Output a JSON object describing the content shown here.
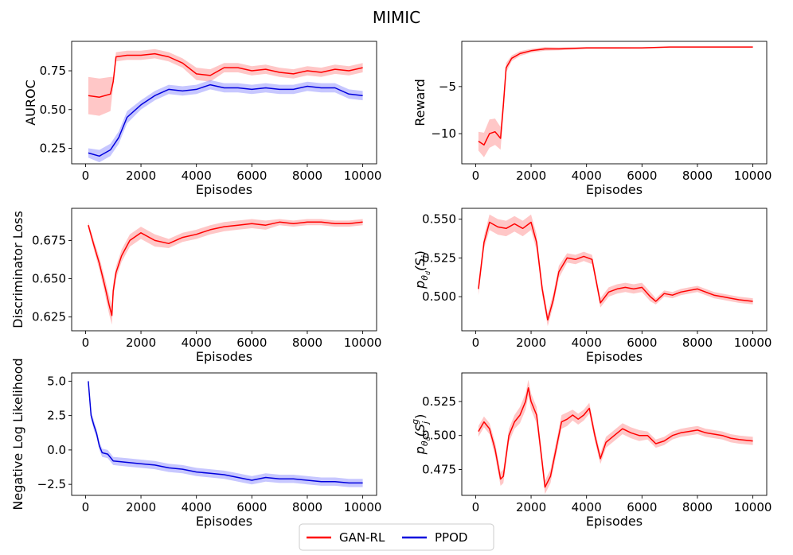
{
  "figure": {
    "suptitle": "MIMIC",
    "legend": {
      "placement": "bottom-center",
      "entries": [
        {
          "label": "GAN-RL",
          "color": "#ff0000"
        },
        {
          "label": "PPOD",
          "color": "#0000dd"
        }
      ]
    }
  },
  "chart_data": [
    {
      "id": "auroc",
      "type": "line",
      "xlabel": "Episodes",
      "ylabel": "AUROC",
      "xlim": [
        -500,
        10500
      ],
      "ylim": [
        0.15,
        0.94
      ],
      "xticks": [
        0,
        2000,
        4000,
        6000,
        8000,
        10000
      ],
      "yticks": [
        0.25,
        0.5,
        0.75
      ],
      "ytick_labels": [
        "0.25",
        "0.50",
        "0.75"
      ],
      "series": [
        {
          "name": "GAN-RL",
          "color": "#ff0000",
          "band_color": "#ff9999",
          "x": [
            100,
            500,
            900,
            1000,
            1100,
            1500,
            2000,
            2500,
            3000,
            3500,
            4000,
            4500,
            5000,
            5500,
            6000,
            6500,
            7000,
            7500,
            8000,
            8500,
            9000,
            9500,
            10000
          ],
          "y": [
            0.59,
            0.58,
            0.6,
            0.68,
            0.84,
            0.85,
            0.85,
            0.86,
            0.84,
            0.8,
            0.73,
            0.72,
            0.77,
            0.77,
            0.75,
            0.76,
            0.74,
            0.73,
            0.75,
            0.74,
            0.76,
            0.75,
            0.77
          ],
          "err": [
            0.12,
            0.12,
            0.11,
            0.03,
            0.03,
            0.03,
            0.03,
            0.03,
            0.03,
            0.03,
            0.04,
            0.04,
            0.03,
            0.03,
            0.03,
            0.03,
            0.03,
            0.03,
            0.03,
            0.03,
            0.03,
            0.03,
            0.03
          ]
        },
        {
          "name": "PPOD",
          "color": "#0000dd",
          "band_color": "#9999ff",
          "x": [
            100,
            500,
            900,
            1200,
            1500,
            2000,
            2500,
            3000,
            3500,
            4000,
            4500,
            5000,
            5500,
            6000,
            6500,
            7000,
            7500,
            8000,
            8500,
            9000,
            9500,
            10000
          ],
          "y": [
            0.22,
            0.2,
            0.24,
            0.32,
            0.45,
            0.53,
            0.59,
            0.63,
            0.62,
            0.63,
            0.66,
            0.64,
            0.64,
            0.63,
            0.64,
            0.63,
            0.63,
            0.65,
            0.64,
            0.64,
            0.6,
            0.59
          ],
          "err": [
            0.03,
            0.04,
            0.04,
            0.04,
            0.04,
            0.03,
            0.03,
            0.03,
            0.03,
            0.03,
            0.03,
            0.03,
            0.03,
            0.03,
            0.03,
            0.03,
            0.03,
            0.03,
            0.03,
            0.03,
            0.03,
            0.03
          ]
        }
      ]
    },
    {
      "id": "reward",
      "type": "line",
      "xlabel": "Episodes",
      "ylabel": "Reward",
      "xlim": [
        -500,
        10500
      ],
      "ylim": [
        -13.2,
        -0.2
      ],
      "xticks": [
        0,
        2000,
        4000,
        6000,
        8000,
        10000
      ],
      "yticks": [
        -10,
        -5
      ],
      "ytick_labels": [
        "−10",
        "−5"
      ],
      "series": [
        {
          "name": "GAN-RL",
          "color": "#ff0000",
          "band_color": "#ff9999",
          "x": [
            100,
            300,
            500,
            700,
            900,
            1000,
            1100,
            1300,
            1600,
            2000,
            2500,
            3000,
            4000,
            5000,
            6000,
            7000,
            8000,
            9000,
            10000
          ],
          "y": [
            -10.8,
            -11.2,
            -10.0,
            -9.8,
            -10.5,
            -7.0,
            -3.0,
            -2.0,
            -1.5,
            -1.2,
            -1.0,
            -1.0,
            -0.9,
            -0.9,
            -0.9,
            -0.8,
            -0.8,
            -0.8,
            -0.8
          ],
          "err": [
            1.0,
            1.3,
            1.5,
            1.4,
            1.2,
            1.0,
            0.5,
            0.3,
            0.25,
            0.2,
            0.2,
            0.15,
            0.1,
            0.1,
            0.08,
            0.05,
            0.05,
            0.05,
            0.05
          ]
        }
      ]
    },
    {
      "id": "disc-loss",
      "type": "line",
      "xlabel": "Episodes",
      "ylabel": "Discriminator Loss",
      "xlim": [
        -500,
        10500
      ],
      "ylim": [
        0.616,
        0.696
      ],
      "xticks": [
        0,
        2000,
        4000,
        6000,
        8000,
        10000
      ],
      "yticks": [
        0.625,
        0.65,
        0.675
      ],
      "ytick_labels": [
        "0.625",
        "0.650",
        "0.675"
      ],
      "series": [
        {
          "name": "GAN-RL",
          "color": "#ff0000",
          "band_color": "#ff9999",
          "x": [
            100,
            300,
            500,
            700,
            850,
            950,
            1000,
            1100,
            1300,
            1600,
            2000,
            2500,
            3000,
            3500,
            4000,
            4500,
            5000,
            5500,
            6000,
            6500,
            7000,
            7500,
            8000,
            8500,
            9000,
            9500,
            10000
          ],
          "y": [
            0.685,
            0.672,
            0.66,
            0.645,
            0.633,
            0.626,
            0.642,
            0.654,
            0.665,
            0.675,
            0.68,
            0.675,
            0.673,
            0.677,
            0.679,
            0.682,
            0.684,
            0.685,
            0.686,
            0.685,
            0.687,
            0.686,
            0.687,
            0.687,
            0.686,
            0.686,
            0.687
          ],
          "err": [
            0.002,
            0.003,
            0.004,
            0.005,
            0.006,
            0.006,
            0.005,
            0.004,
            0.004,
            0.004,
            0.004,
            0.004,
            0.003,
            0.003,
            0.003,
            0.003,
            0.003,
            0.003,
            0.003,
            0.003,
            0.002,
            0.002,
            0.002,
            0.002,
            0.002,
            0.002,
            0.002
          ]
        }
      ]
    },
    {
      "id": "p-si",
      "type": "line",
      "xlabel": "Episodes",
      "ylabel_main": "p",
      "ylabel_sub": "θ",
      "ylabel_subsub": "d",
      "ylabel_rest": "(S",
      "ylabel_i": "i",
      "ylabel_close": ")",
      "xlim": [
        -500,
        10500
      ],
      "ylim": [
        0.478,
        0.557
      ],
      "xticks": [
        0,
        2000,
        4000,
        6000,
        8000,
        10000
      ],
      "yticks": [
        0.5,
        0.525,
        0.55
      ],
      "ytick_labels": [
        "0.500",
        "0.525",
        "0.550"
      ],
      "series": [
        {
          "name": "GAN-RL",
          "color": "#ff0000",
          "band_color": "#ff9999",
          "x": [
            100,
            300,
            500,
            800,
            1100,
            1400,
            1700,
            2000,
            2200,
            2400,
            2600,
            2800,
            3000,
            3300,
            3600,
            3900,
            4200,
            4500,
            4800,
            5100,
            5400,
            5700,
            6000,
            6300,
            6500,
            6800,
            7100,
            7400,
            7700,
            8000,
            8300,
            8600,
            8900,
            9200,
            9500,
            10000
          ],
          "y": [
            0.505,
            0.535,
            0.548,
            0.545,
            0.544,
            0.547,
            0.544,
            0.548,
            0.535,
            0.505,
            0.485,
            0.498,
            0.516,
            0.525,
            0.524,
            0.526,
            0.524,
            0.496,
            0.503,
            0.505,
            0.506,
            0.505,
            0.506,
            0.5,
            0.497,
            0.502,
            0.501,
            0.503,
            0.504,
            0.505,
            0.503,
            0.501,
            0.5,
            0.499,
            0.498,
            0.497
          ],
          "err": [
            0.004,
            0.004,
            0.005,
            0.005,
            0.005,
            0.005,
            0.005,
            0.005,
            0.005,
            0.004,
            0.004,
            0.004,
            0.004,
            0.003,
            0.003,
            0.003,
            0.003,
            0.003,
            0.003,
            0.003,
            0.003,
            0.003,
            0.003,
            0.003,
            0.002,
            0.002,
            0.002,
            0.002,
            0.002,
            0.002,
            0.002,
            0.002,
            0.002,
            0.002,
            0.002,
            0.002
          ]
        }
      ]
    },
    {
      "id": "nll",
      "type": "line",
      "xlabel": "Episodes",
      "ylabel": "Negative Log Likelihood",
      "xlim": [
        -500,
        10500
      ],
      "ylim": [
        -3.3,
        5.6
      ],
      "xticks": [
        0,
        2000,
        4000,
        6000,
        8000,
        10000
      ],
      "yticks": [
        -2.5,
        0,
        2.5,
        5
      ],
      "ytick_labels": [
        "−2.5",
        "0.0",
        "2.5",
        "5.0"
      ],
      "series": [
        {
          "name": "PPOD",
          "color": "#0000dd",
          "band_color": "#9999ff",
          "x": [
            100,
            200,
            300,
            400,
            500,
            600,
            800,
            1000,
            1500,
            2000,
            2500,
            3000,
            3500,
            4000,
            4500,
            5000,
            5500,
            6000,
            6500,
            7000,
            7500,
            8000,
            8500,
            9000,
            9500,
            10000
          ],
          "y": [
            5.0,
            2.5,
            1.8,
            1.2,
            0.3,
            -0.2,
            -0.3,
            -0.8,
            -0.9,
            -1.0,
            -1.1,
            -1.3,
            -1.4,
            -1.6,
            -1.7,
            -1.8,
            -2.0,
            -2.2,
            -2.0,
            -2.1,
            -2.1,
            -2.2,
            -2.3,
            -2.3,
            -2.4,
            -2.4
          ],
          "err": [
            0.2,
            0.3,
            0.35,
            0.3,
            0.3,
            0.3,
            0.3,
            0.3,
            0.3,
            0.3,
            0.3,
            0.3,
            0.3,
            0.3,
            0.3,
            0.3,
            0.3,
            0.3,
            0.3,
            0.3,
            0.3,
            0.3,
            0.3,
            0.3,
            0.3,
            0.3
          ]
        }
      ]
    },
    {
      "id": "p-sjg",
      "type": "line",
      "xlabel": "Episodes",
      "ylabel_main": "p",
      "ylabel_sub": "θ",
      "ylabel_subsub": "d",
      "ylabel_rest": "(S",
      "ylabel_j": "j",
      "ylabel_g": "g",
      "ylabel_close": ")",
      "xlim": [
        -500,
        10500
      ],
      "ylim": [
        0.456,
        0.546
      ],
      "xticks": [
        0,
        2000,
        4000,
        6000,
        8000,
        10000
      ],
      "yticks": [
        0.475,
        0.5,
        0.525
      ],
      "ytick_labels": [
        "0.475",
        "0.500",
        "0.525"
      ],
      "series": [
        {
          "name": "GAN-RL",
          "color": "#ff0000",
          "band_color": "#ff9999",
          "x": [
            100,
            300,
            500,
            700,
            900,
            1000,
            1200,
            1400,
            1600,
            1800,
            1900,
            2000,
            2200,
            2400,
            2500,
            2700,
            2900,
            3100,
            3300,
            3500,
            3700,
            3900,
            4100,
            4300,
            4500,
            4700,
            5000,
            5300,
            5600,
            5900,
            6200,
            6500,
            6800,
            7100,
            7400,
            7700,
            8000,
            8300,
            8600,
            8900,
            9200,
            9500,
            10000
          ],
          "y": [
            0.503,
            0.51,
            0.505,
            0.49,
            0.468,
            0.47,
            0.5,
            0.51,
            0.515,
            0.525,
            0.535,
            0.525,
            0.515,
            0.48,
            0.462,
            0.47,
            0.49,
            0.51,
            0.512,
            0.515,
            0.512,
            0.515,
            0.52,
            0.5,
            0.483,
            0.495,
            0.5,
            0.505,
            0.502,
            0.5,
            0.5,
            0.494,
            0.496,
            0.5,
            0.502,
            0.503,
            0.504,
            0.502,
            0.501,
            0.5,
            0.498,
            0.497,
            0.496
          ],
          "err": [
            0.004,
            0.004,
            0.004,
            0.005,
            0.005,
            0.005,
            0.005,
            0.005,
            0.006,
            0.006,
            0.006,
            0.006,
            0.006,
            0.005,
            0.005,
            0.005,
            0.005,
            0.005,
            0.005,
            0.004,
            0.004,
            0.004,
            0.004,
            0.004,
            0.004,
            0.004,
            0.004,
            0.004,
            0.004,
            0.004,
            0.003,
            0.003,
            0.003,
            0.003,
            0.003,
            0.003,
            0.003,
            0.003,
            0.003,
            0.003,
            0.003,
            0.003,
            0.003
          ]
        }
      ]
    }
  ]
}
